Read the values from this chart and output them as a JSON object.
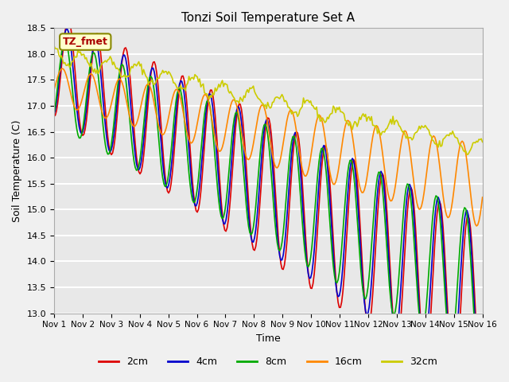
{
  "title": "Tonzi Soil Temperature Set A",
  "xlabel": "Time",
  "ylabel": "Soil Temperature (C)",
  "ylim": [
    13.0,
    18.5
  ],
  "yticks": [
    13.0,
    13.5,
    14.0,
    14.5,
    15.0,
    15.5,
    16.0,
    16.5,
    17.0,
    17.5,
    18.0,
    18.5
  ],
  "xtick_labels": [
    "Nov 1",
    "Nov 2",
    "Nov 3",
    "Nov 4",
    "Nov 5",
    "Nov 6",
    "Nov 7",
    "Nov 8",
    "Nov 9",
    "Nov 10",
    "Nov 11",
    "Nov 12",
    "Nov 13",
    "Nov 14",
    "Nov 15",
    "Nov 16"
  ],
  "colors": {
    "2cm": "#dd0000",
    "4cm": "#0000cc",
    "8cm": "#00aa00",
    "16cm": "#ff8800",
    "32cm": "#cccc00"
  },
  "legend_label": "TZ_fmet",
  "legend_entries": [
    "2cm",
    "4cm",
    "8cm",
    "16cm",
    "32cm"
  ],
  "plot_bg": "#e8e8e8",
  "n_points": 360,
  "n_days": 15
}
